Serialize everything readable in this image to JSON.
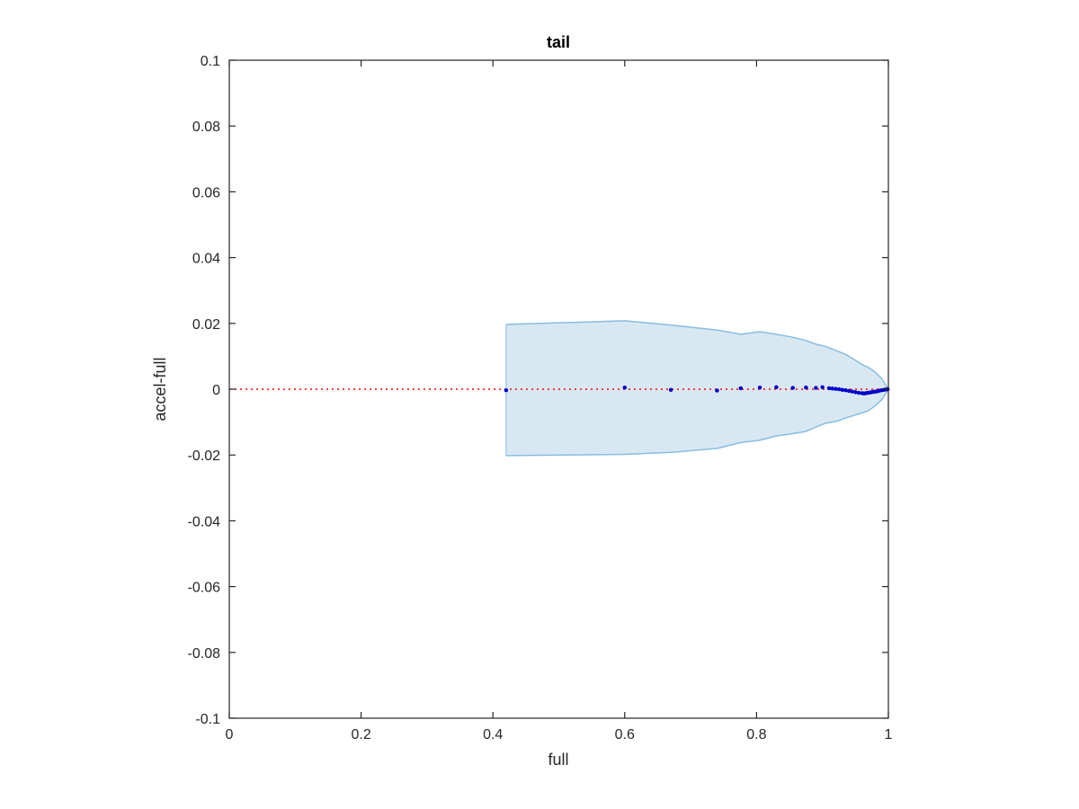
{
  "chart_data": {
    "type": "scatter",
    "title": "tail",
    "xlabel": "full",
    "ylabel": "accel-full",
    "xlim": [
      0,
      1
    ],
    "ylim": [
      -0.1,
      0.1
    ],
    "xticks": [
      0,
      0.2,
      0.4,
      0.6,
      0.8,
      1
    ],
    "xtick_labels": [
      "0",
      "0.2",
      "0.4",
      "0.6",
      "0.8",
      "1"
    ],
    "yticks": [
      0.1,
      0.08,
      0.06,
      0.04,
      0.02,
      0,
      -0.02,
      -0.04,
      -0.06,
      -0.08,
      -0.1
    ],
    "ytick_labels": [
      "0.1",
      "0.08",
      "0.06",
      "0.04",
      "0.02",
      "0",
      "-0.02",
      "-0.04",
      "-0.06",
      "-0.08",
      "-0.1"
    ],
    "grid": false,
    "reference_line": {
      "y": 0,
      "color": "#ff0000",
      "style": "dotted"
    },
    "band": {
      "color": "#d8e8f3",
      "edge_color": "#88bde0",
      "x": [
        0.42,
        0.6,
        0.67,
        0.74,
        0.776,
        0.805,
        0.83,
        0.855,
        0.875,
        0.89,
        0.905,
        0.92,
        0.935,
        0.95,
        0.96,
        0.97,
        0.98,
        0.99,
        1.0
      ],
      "upper": [
        0.0197,
        0.0208,
        0.0195,
        0.018,
        0.0167,
        0.0175,
        0.0167,
        0.0158,
        0.0148,
        0.0137,
        0.013,
        0.0118,
        0.0106,
        0.0088,
        0.0075,
        0.0066,
        0.0052,
        0.0032,
        0.0
      ],
      "lower": [
        -0.0202,
        -0.0198,
        -0.0192,
        -0.018,
        -0.0162,
        -0.0155,
        -0.0142,
        -0.0135,
        -0.0128,
        -0.0115,
        -0.0103,
        -0.0098,
        -0.0088,
        -0.0078,
        -0.0072,
        -0.0065,
        -0.005,
        -0.0032,
        0.0
      ]
    },
    "series": [
      {
        "color": "#0000cc",
        "x": [
          0.42,
          0.6,
          0.67,
          0.74,
          0.776,
          0.805,
          0.83,
          0.855,
          0.875,
          0.89,
          0.9,
          0.91,
          0.915,
          0.92,
          0.925,
          0.93,
          0.935,
          0.94,
          0.945,
          0.95,
          0.955,
          0.96,
          0.963,
          0.966,
          0.969,
          0.972,
          0.975,
          0.978,
          0.981,
          0.984,
          0.987,
          0.99,
          0.993,
          0.996,
          0.999
        ],
        "y": [
          -0.0003,
          0.0005,
          -0.0002,
          -0.0004,
          0.0003,
          0.0005,
          0.0006,
          0.0004,
          0.0005,
          0.0004,
          0.0006,
          0.0003,
          0.0002,
          0.0001,
          0.0,
          -0.0002,
          -0.0003,
          -0.0005,
          -0.0007,
          -0.0009,
          -0.0011,
          -0.0012,
          -0.0013,
          -0.0012,
          -0.0011,
          -0.001,
          -0.0009,
          -0.0008,
          -0.0007,
          -0.0006,
          -0.0004,
          -0.0003,
          -0.0002,
          -0.0001,
          0.0
        ]
      }
    ]
  }
}
